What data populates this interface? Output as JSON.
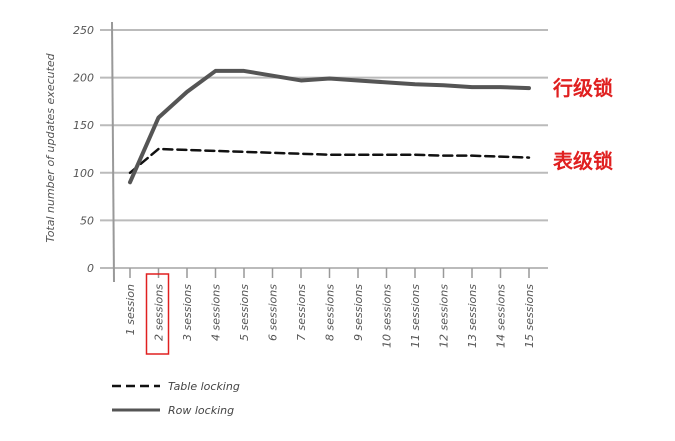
{
  "chart_data": {
    "type": "line",
    "ylabel": "Total number of updates executed",
    "xlabel": "",
    "ylim": [
      0,
      250
    ],
    "yticks": [
      0,
      50,
      100,
      150,
      200,
      250
    ],
    "categories": [
      "1 session",
      "2 sessions",
      "3 sessions",
      "4 sessions",
      "5 sessions",
      "6 sessions",
      "7 sessions",
      "8 sessions",
      "9 sessions",
      "10 sessions",
      "11 sessions",
      "12 sessions",
      "13 sessions",
      "14 sessions",
      "15 sessions"
    ],
    "highlighted_category": "2 sessions",
    "grid": true,
    "legend_position": "bottom-left",
    "series": [
      {
        "name": "Table locking",
        "style": "dashed",
        "color": "#111111",
        "values": [
          100,
          125,
          124,
          123,
          122,
          121,
          120,
          119,
          119,
          119,
          119,
          118,
          118,
          117,
          116
        ]
      },
      {
        "name": "Row locking",
        "style": "solid",
        "color": "#555555",
        "values": [
          90,
          158,
          185,
          207,
          207,
          202,
          197,
          199,
          197,
          195,
          193,
          192,
          190,
          190,
          189
        ]
      }
    ],
    "annotations": [
      {
        "text": "行级锁",
        "series": "Row locking",
        "color": "#e02020"
      },
      {
        "text": "表级锁",
        "series": "Table locking",
        "color": "#e02020"
      }
    ]
  }
}
